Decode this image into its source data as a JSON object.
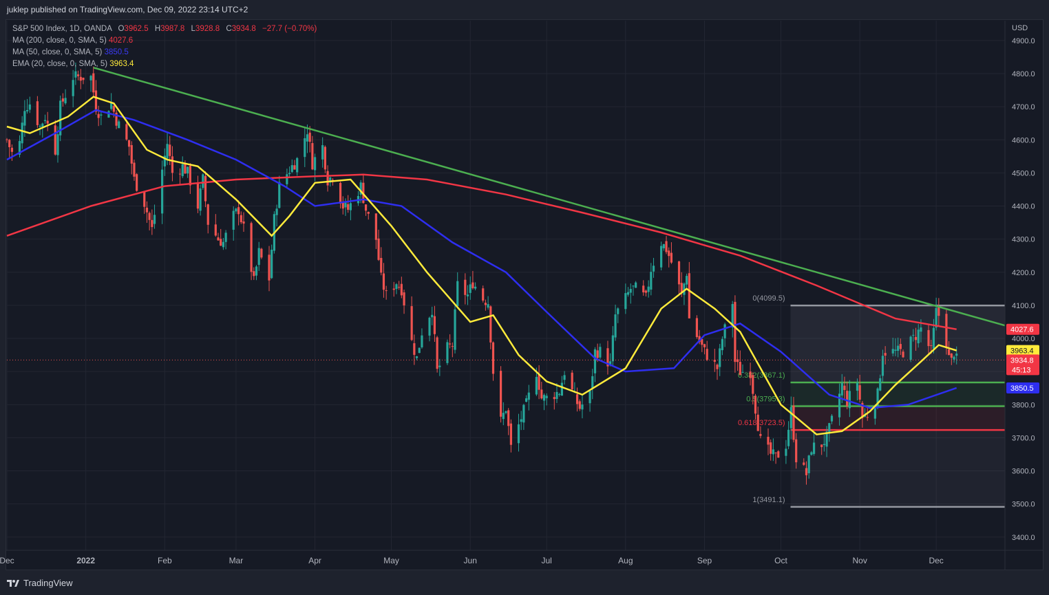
{
  "header": {
    "published": "juklep published on TradingView.com, Dec 09, 2022 23:14 UTC+2"
  },
  "legend": {
    "symbol": "S&P 500 Index, 1D, OANDA",
    "o_label": "O",
    "o_value": "3962.5",
    "h_label": "H",
    "h_value": "3987.8",
    "l_label": "L",
    "l_value": "3928.8",
    "c_label": "C",
    "c_value": "3934.8",
    "change": "−27.7 (−0.70%)",
    "ma200_label": "MA (200, close, 0, SMA, 5)",
    "ma200_value": "4027.6",
    "ma50_label": "MA (50, close, 0, SMA, 5)",
    "ma50_value": "3850.5",
    "ema20_label": "EMA (20, close, 0, SMA, 5)",
    "ema20_value": "3963.4"
  },
  "colors": {
    "background": "#161a25",
    "up": "#26a69a",
    "down": "#ef5350",
    "ma200": "#f23645",
    "ma50": "#2e2ef0",
    "ema20": "#ffeb3b",
    "trendline": "#4caf50",
    "fib_grey": "#9598a1",
    "fib_green": "#4caf50",
    "fib_red": "#f23645"
  },
  "footer": {
    "brand": "TradingView",
    "logo_icon": "tradingview-logo-icon"
  },
  "chart_data": {
    "type": "candlestick",
    "currency": "USD",
    "y_axis": {
      "unit_label": "USD",
      "ylim": [
        3360,
        4960
      ],
      "ticks": [
        3400,
        3500,
        3600,
        3700,
        3800,
        3900,
        4000,
        4100,
        4200,
        4300,
        4400,
        4500,
        4600,
        4700,
        4800,
        4900
      ],
      "tick_labels": [
        "3400.0",
        "3500.0",
        "3600.0",
        "3700.0",
        "3800.0",
        "3900.0",
        "4000.0",
        "4100.0",
        "4200.0",
        "4300.0",
        "4400.0",
        "4500.0",
        "4600.0",
        "4700.0",
        "4800.0",
        "4900.0"
      ]
    },
    "x_axis": {
      "start": "2021-12-01",
      "end": "2022-12-28",
      "tick_labels": [
        {
          "date": "2021-12-01",
          "label": "Dec",
          "bold": false
        },
        {
          "date": "2022-01-01",
          "label": "2022",
          "bold": true
        },
        {
          "date": "2022-02-01",
          "label": "Feb",
          "bold": false
        },
        {
          "date": "2022-03-01",
          "label": "Mar",
          "bold": false
        },
        {
          "date": "2022-04-01",
          "label": "Apr",
          "bold": false
        },
        {
          "date": "2022-05-01",
          "label": "May",
          "bold": false
        },
        {
          "date": "2022-06-01",
          "label": "Jun",
          "bold": false
        },
        {
          "date": "2022-07-01",
          "label": "Jul",
          "bold": false
        },
        {
          "date": "2022-08-01",
          "label": "Aug",
          "bold": false
        },
        {
          "date": "2022-09-01",
          "label": "Sep",
          "bold": false
        },
        {
          "date": "2022-10-01",
          "label": "Oct",
          "bold": false
        },
        {
          "date": "2022-11-01",
          "label": "Nov",
          "bold": false
        },
        {
          "date": "2022-12-01",
          "label": "Dec",
          "bold": false
        }
      ]
    },
    "close_series": [
      [
        "2021-12-01",
        4600
      ],
      [
        "2021-12-03",
        4560
      ],
      [
        "2021-12-06",
        4590
      ],
      [
        "2021-12-08",
        4700
      ],
      [
        "2021-12-10",
        4710
      ],
      [
        "2021-12-14",
        4640
      ],
      [
        "2021-12-16",
        4670
      ],
      [
        "2021-12-20",
        4570
      ],
      [
        "2021-12-22",
        4700
      ],
      [
        "2021-12-27",
        4790
      ],
      [
        "2021-12-29",
        4790
      ],
      [
        "2022-01-03",
        4790
      ],
      [
        "2022-01-05",
        4700
      ],
      [
        "2022-01-07",
        4670
      ],
      [
        "2022-01-11",
        4710
      ],
      [
        "2022-01-13",
        4660
      ],
      [
        "2022-01-18",
        4580
      ],
      [
        "2022-01-20",
        4480
      ],
      [
        "2022-01-24",
        4410
      ],
      [
        "2022-01-27",
        4330
      ],
      [
        "2022-01-31",
        4510
      ],
      [
        "2022-02-02",
        4590
      ],
      [
        "2022-02-04",
        4500
      ],
      [
        "2022-02-08",
        4520
      ],
      [
        "2022-02-10",
        4500
      ],
      [
        "2022-02-14",
        4400
      ],
      [
        "2022-02-16",
        4480
      ],
      [
        "2022-02-18",
        4350
      ],
      [
        "2022-02-22",
        4300
      ],
      [
        "2022-02-24",
        4290
      ],
      [
        "2022-02-28",
        4370
      ],
      [
        "2022-03-02",
        4390
      ],
      [
        "2022-03-04",
        4330
      ],
      [
        "2022-03-08",
        4170
      ],
      [
        "2022-03-10",
        4260
      ],
      [
        "2022-03-14",
        4180
      ],
      [
        "2022-03-16",
        4360
      ],
      [
        "2022-03-18",
        4460
      ],
      [
        "2022-03-22",
        4510
      ],
      [
        "2022-03-25",
        4540
      ],
      [
        "2022-03-29",
        4630
      ],
      [
        "2022-03-31",
        4530
      ],
      [
        "2022-04-04",
        4580
      ],
      [
        "2022-04-06",
        4480
      ],
      [
        "2022-04-08",
        4490
      ],
      [
        "2022-04-12",
        4400
      ],
      [
        "2022-04-14",
        4390
      ],
      [
        "2022-04-19",
        4460
      ],
      [
        "2022-04-21",
        4390
      ],
      [
        "2022-04-25",
        4300
      ],
      [
        "2022-04-27",
        4180
      ],
      [
        "2022-04-29",
        4130
      ],
      [
        "2022-05-03",
        4170
      ],
      [
        "2022-05-05",
        4150
      ],
      [
        "2022-05-09",
        3990
      ],
      [
        "2022-05-11",
        3940
      ],
      [
        "2022-05-13",
        4020
      ],
      [
        "2022-05-17",
        4090
      ],
      [
        "2022-05-19",
        3900
      ],
      [
        "2022-05-23",
        3970
      ],
      [
        "2022-05-25",
        3980
      ],
      [
        "2022-05-27",
        4160
      ],
      [
        "2022-05-31",
        4130
      ],
      [
        "2022-06-02",
        4170
      ],
      [
        "2022-06-06",
        4120
      ],
      [
        "2022-06-08",
        4110
      ],
      [
        "2022-06-10",
        3900
      ],
      [
        "2022-06-13",
        3750
      ],
      [
        "2022-06-15",
        3790
      ],
      [
        "2022-06-17",
        3670
      ],
      [
        "2022-06-21",
        3760
      ],
      [
        "2022-06-23",
        3800
      ],
      [
        "2022-06-27",
        3900
      ],
      [
        "2022-06-29",
        3820
      ],
      [
        "2022-07-01",
        3820
      ],
      [
        "2022-07-06",
        3840
      ],
      [
        "2022-07-08",
        3900
      ],
      [
        "2022-07-12",
        3820
      ],
      [
        "2022-07-14",
        3790
      ],
      [
        "2022-07-18",
        3830
      ],
      [
        "2022-07-20",
        3960
      ],
      [
        "2022-07-22",
        3960
      ],
      [
        "2022-07-26",
        3920
      ],
      [
        "2022-07-28",
        4070
      ],
      [
        "2022-08-01",
        4120
      ],
      [
        "2022-08-03",
        4150
      ],
      [
        "2022-08-05",
        4150
      ],
      [
        "2022-08-09",
        4120
      ],
      [
        "2022-08-11",
        4210
      ],
      [
        "2022-08-15",
        4290
      ],
      [
        "2022-08-17",
        4270
      ],
      [
        "2022-08-19",
        4230
      ],
      [
        "2022-08-23",
        4130
      ],
      [
        "2022-08-25",
        4200
      ],
      [
        "2022-08-26",
        4060
      ],
      [
        "2022-08-30",
        3990
      ],
      [
        "2022-09-01",
        3960
      ],
      [
        "2022-09-06",
        3910
      ],
      [
        "2022-09-08",
        4000
      ],
      [
        "2022-09-12",
        4110
      ],
      [
        "2022-09-13",
        3930
      ],
      [
        "2022-09-15",
        3900
      ],
      [
        "2022-09-19",
        3900
      ],
      [
        "2022-09-21",
        3790
      ],
      [
        "2022-09-23",
        3690
      ],
      [
        "2022-09-27",
        3650
      ],
      [
        "2022-09-29",
        3640
      ],
      [
        "2022-10-03",
        3680
      ],
      [
        "2022-10-05",
        3780
      ],
      [
        "2022-10-07",
        3640
      ],
      [
        "2022-10-11",
        3590
      ],
      [
        "2022-10-13",
        3670
      ],
      [
        "2022-10-17",
        3680
      ],
      [
        "2022-10-19",
        3700
      ],
      [
        "2022-10-21",
        3750
      ],
      [
        "2022-10-25",
        3860
      ],
      [
        "2022-10-27",
        3810
      ],
      [
        "2022-10-31",
        3870
      ],
      [
        "2022-11-02",
        3760
      ],
      [
        "2022-11-04",
        3770
      ],
      [
        "2022-11-08",
        3830
      ],
      [
        "2022-11-10",
        3960
      ],
      [
        "2022-11-14",
        3960
      ],
      [
        "2022-11-16",
        3960
      ],
      [
        "2022-11-18",
        3960
      ],
      [
        "2022-11-22",
        4000
      ],
      [
        "2022-11-25",
        4030
      ],
      [
        "2022-11-29",
        3960
      ],
      [
        "2022-12-01",
        4080
      ],
      [
        "2022-12-02",
        4070
      ],
      [
        "2022-12-05",
        3990
      ],
      [
        "2022-12-06",
        3940
      ],
      [
        "2022-12-07",
        3930
      ],
      [
        "2022-12-08",
        3960
      ],
      [
        "2022-12-09",
        3934.8
      ]
    ],
    "lines": {
      "ma200": [
        [
          "2021-12-01",
          4310
        ],
        [
          "2022-01-03",
          4400
        ],
        [
          "2022-02-01",
          4460
        ],
        [
          "2022-03-01",
          4480
        ],
        [
          "2022-04-01",
          4490
        ],
        [
          "2022-04-20",
          4495
        ],
        [
          "2022-05-15",
          4480
        ],
        [
          "2022-06-15",
          4435
        ],
        [
          "2022-07-15",
          4380
        ],
        [
          "2022-08-15",
          4320
        ],
        [
          "2022-09-15",
          4250
        ],
        [
          "2022-10-15",
          4160
        ],
        [
          "2022-11-15",
          4060
        ],
        [
          "2022-12-09",
          4027.6
        ]
      ],
      "ma50": [
        [
          "2021-12-01",
          4540
        ],
        [
          "2021-12-20",
          4620
        ],
        [
          "2022-01-05",
          4690
        ],
        [
          "2022-01-20",
          4660
        ],
        [
          "2022-02-10",
          4600
        ],
        [
          "2022-03-01",
          4540
        ],
        [
          "2022-03-20",
          4460
        ],
        [
          "2022-04-01",
          4400
        ],
        [
          "2022-04-20",
          4420
        ],
        [
          "2022-05-05",
          4400
        ],
        [
          "2022-05-25",
          4290
        ],
        [
          "2022-06-15",
          4200
        ],
        [
          "2022-07-01",
          4080
        ],
        [
          "2022-07-20",
          3940
        ],
        [
          "2022-08-01",
          3900
        ],
        [
          "2022-08-20",
          3910
        ],
        [
          "2022-09-01",
          4010
        ],
        [
          "2022-09-15",
          4045
        ],
        [
          "2022-10-01",
          3960
        ],
        [
          "2022-10-20",
          3830
        ],
        [
          "2022-11-05",
          3790
        ],
        [
          "2022-11-20",
          3800
        ],
        [
          "2022-12-09",
          3850.5
        ]
      ],
      "ema20": [
        [
          "2021-12-01",
          4640
        ],
        [
          "2021-12-10",
          4620
        ],
        [
          "2021-12-25",
          4670
        ],
        [
          "2022-01-04",
          4730
        ],
        [
          "2022-01-12",
          4710
        ],
        [
          "2022-01-25",
          4570
        ],
        [
          "2022-02-02",
          4540
        ],
        [
          "2022-02-14",
          4520
        ],
        [
          "2022-03-01",
          4420
        ],
        [
          "2022-03-15",
          4310
        ],
        [
          "2022-03-22",
          4370
        ],
        [
          "2022-04-01",
          4470
        ],
        [
          "2022-04-15",
          4480
        ],
        [
          "2022-05-01",
          4340
        ],
        [
          "2022-05-15",
          4200
        ],
        [
          "2022-06-01",
          4050
        ],
        [
          "2022-06-10",
          4070
        ],
        [
          "2022-06-20",
          3950
        ],
        [
          "2022-07-01",
          3870
        ],
        [
          "2022-07-15",
          3830
        ],
        [
          "2022-08-01",
          3910
        ],
        [
          "2022-08-15",
          4090
        ],
        [
          "2022-08-25",
          4150
        ],
        [
          "2022-09-05",
          4090
        ],
        [
          "2022-09-15",
          4020
        ],
        [
          "2022-10-01",
          3800
        ],
        [
          "2022-10-15",
          3710
        ],
        [
          "2022-10-25",
          3720
        ],
        [
          "2022-11-05",
          3780
        ],
        [
          "2022-11-15",
          3860
        ],
        [
          "2022-11-25",
          3930
        ],
        [
          "2022-12-02",
          3980
        ],
        [
          "2022-12-09",
          3963.4
        ]
      ]
    },
    "trendline": {
      "label": "",
      "from": [
        "2022-01-04",
        4818
      ],
      "to": [
        "2022-12-28",
        4039
      ]
    },
    "fib": {
      "start": "2022-10-01",
      "end": "2022-12-28",
      "levels": [
        {
          "ratio": "0",
          "price": 4099.5,
          "label": "0(4099.5)",
          "color": "#9598a1"
        },
        {
          "ratio": "0.382",
          "price": 3867.1,
          "label": "0.382(3867.1)",
          "color": "#4caf50"
        },
        {
          "ratio": "0.5",
          "price": 3795.3,
          "label": "0.5(3795.3)",
          "color": "#4caf50"
        },
        {
          "ratio": "0.618",
          "price": 3723.5,
          "label": "0.618(3723.5)",
          "color": "#f23645"
        },
        {
          "ratio": "1",
          "price": 3491.1,
          "label": "1(3491.1)",
          "color": "#9598a1"
        }
      ]
    },
    "price_tags": [
      {
        "value": 4027.6,
        "label": "4027.6",
        "bg": "#f23645",
        "fg": "#ffffff"
      },
      {
        "value": 3963.4,
        "label": "3963.4",
        "bg": "#ffeb3b",
        "fg": "#131722"
      },
      {
        "value": 3934.8,
        "label": "3934.8",
        "bg": "#f23645",
        "fg": "#ffffff",
        "sub": "45:13"
      },
      {
        "value": 3850.5,
        "label": "3850.5",
        "bg": "#2e2ef0",
        "fg": "#ffffff"
      }
    ],
    "current_price": 3934.8
  }
}
